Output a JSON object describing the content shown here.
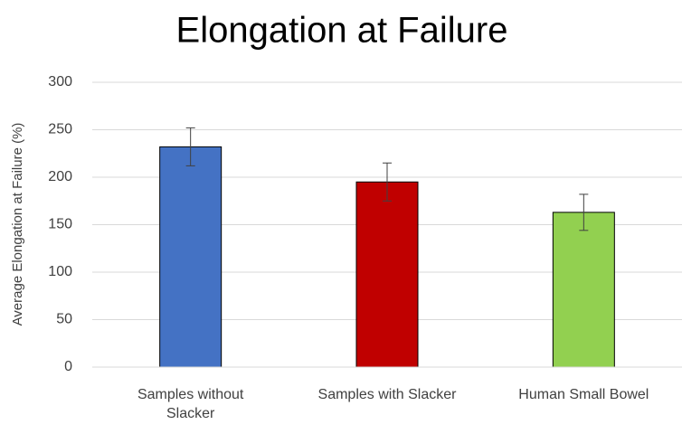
{
  "chart_data": {
    "type": "bar",
    "title": "Elongation at Failure",
    "y_label": "Average Elongation at Failure (%)",
    "categories": [
      "Samples without Slacker",
      "Samples with Slacker",
      "Human Small Bowel"
    ],
    "values": [
      232,
      195,
      163
    ],
    "errors": [
      20,
      20,
      19
    ],
    "colors": [
      "#4472c4",
      "#c00000",
      "#92d050"
    ],
    "ylim": [
      0,
      300
    ],
    "yticks": [
      0,
      50,
      100,
      150,
      200,
      250,
      300
    ],
    "grid": true
  }
}
